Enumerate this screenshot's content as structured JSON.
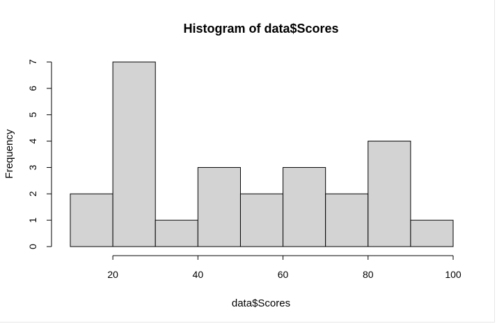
{
  "chart_data": {
    "type": "bar",
    "title": "Histogram of data$Scores",
    "xlabel": "data$Scores",
    "ylabel": "Frequency",
    "bins": [
      {
        "start": 10,
        "end": 20,
        "count": 2
      },
      {
        "start": 20,
        "end": 30,
        "count": 7
      },
      {
        "start": 30,
        "end": 40,
        "count": 1
      },
      {
        "start": 40,
        "end": 50,
        "count": 3
      },
      {
        "start": 50,
        "end": 60,
        "count": 2
      },
      {
        "start": 60,
        "end": 70,
        "count": 3
      },
      {
        "start": 70,
        "end": 80,
        "count": 2
      },
      {
        "start": 80,
        "end": 90,
        "count": 4
      },
      {
        "start": 90,
        "end": 100,
        "count": 1
      }
    ],
    "x_ticks": [
      20,
      40,
      60,
      80,
      100
    ],
    "y_ticks": [
      0,
      1,
      2,
      3,
      4,
      5,
      6,
      7
    ],
    "xlim": [
      10,
      100
    ],
    "ylim": [
      0,
      7
    ],
    "bar_color": "#d3d3d3",
    "grid": false
  }
}
